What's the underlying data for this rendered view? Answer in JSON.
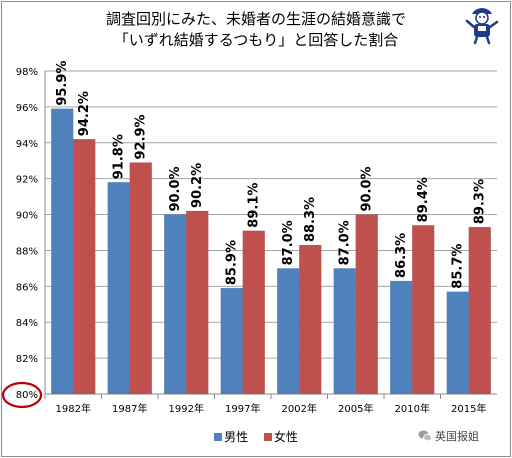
{
  "title": {
    "line1": "調査回別にみた、未婚者の生涯の結婚意識で",
    "line2": "「いずれ結婚するつもり」と回答した割合"
  },
  "watermark": {
    "text": "英国报姐",
    "icon": "wechat-icon"
  },
  "colors": {
    "male": "#4f81bd",
    "female": "#c0504d",
    "highlight": "#c00000",
    "grid": "#a6a6a6"
  },
  "chart_data": {
    "type": "bar",
    "categories": [
      "1982年",
      "1987年",
      "1992年",
      "1997年",
      "2002年",
      "2005年",
      "2010年",
      "2015年"
    ],
    "series": [
      {
        "name": "男性",
        "values": [
          95.9,
          91.8,
          90.0,
          85.9,
          87.0,
          87.0,
          86.3,
          85.7
        ]
      },
      {
        "name": "女性",
        "values": [
          94.2,
          92.9,
          90.2,
          89.1,
          88.3,
          90.0,
          89.4,
          89.3
        ]
      }
    ],
    "data_labels": [
      [
        "95.9%",
        "91.8%",
        "90.0%",
        "85.9%",
        "87.0%",
        "87.0%",
        "86.3%",
        "85.7%"
      ],
      [
        "94.2%",
        "92.9%",
        "90.2%",
        "89.1%",
        "88.3%",
        "90.0%",
        "89.4%",
        "89.3%"
      ]
    ],
    "y_ticks": [
      80,
      82,
      84,
      86,
      88,
      90,
      92,
      94,
      96,
      98
    ],
    "y_tick_labels": [
      "80%",
      "82%",
      "84%",
      "86%",
      "88%",
      "90%",
      "92%",
      "94%",
      "96%",
      "98%"
    ],
    "ylim": [
      80,
      98
    ],
    "highlighted_tick": "80%",
    "grid": true,
    "legend_position": "bottom",
    "title": "調査回別にみた、未婚者の生涯の結婚意識で「いずれ結婚するつもり」と回答した割合"
  }
}
